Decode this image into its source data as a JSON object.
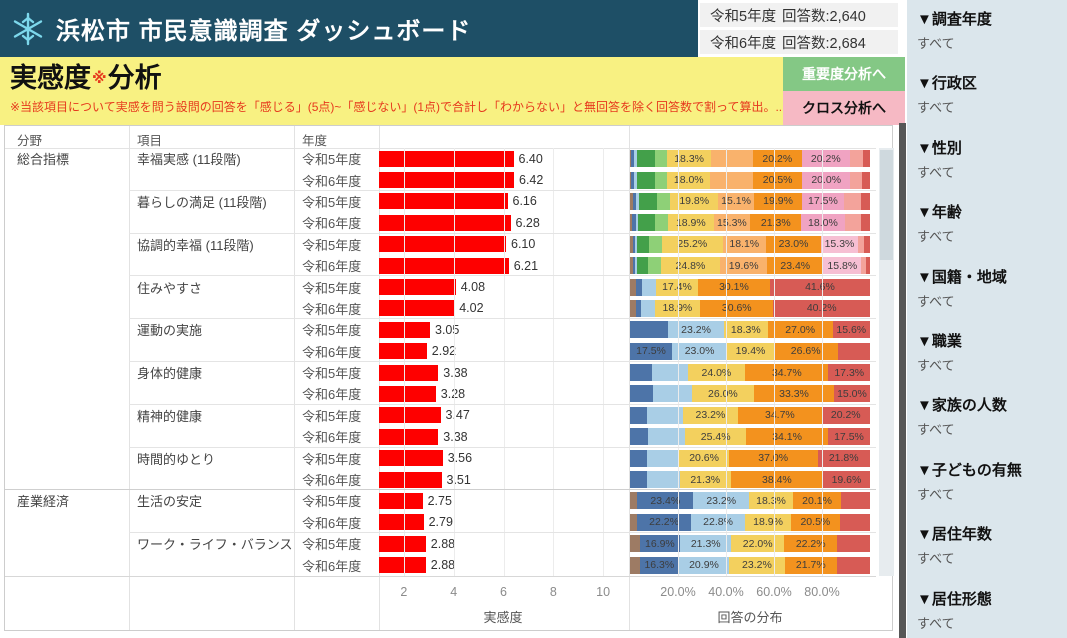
{
  "header": {
    "title": "浜松市 市民意識調査 ダッシュボード",
    "icon": "snowflake-icon"
  },
  "counts": [
    {
      "year": "令和5年度",
      "label": "回答数:2,640"
    },
    {
      "year": "令和6年度",
      "label": "回答数:2,684"
    }
  ],
  "banner": {
    "title_main": "実感度",
    "title_star": "※",
    "title_suffix": "分析",
    "note": "※当該項目について実感を問う設問の回答を「感じる」(5点)~「感じない」(1点)で合計し「わからない」と無回答を除く回答数で割って算出。.."
  },
  "buttons": {
    "importance": "重要度分析へ",
    "cross": "クロス分析へ"
  },
  "table_headers": {
    "category": "分野",
    "item": "項目",
    "year": "年度"
  },
  "axes": {
    "feeling": {
      "label": "実感度",
      "ticks": [
        2,
        4,
        6,
        8,
        10
      ],
      "range": [
        1,
        11
      ]
    },
    "distribution": {
      "label": "回答の分布",
      "ticks": [
        "20.0%",
        "40.0%",
        "60.0%",
        "80.0%"
      ],
      "tick_positions": [
        20,
        40,
        60,
        80
      ]
    }
  },
  "palette": {
    "brown": "#9d7b64",
    "navy": "#4d74a8",
    "ltblue": "#a9cee6",
    "dkgreen": "#43a04a",
    "ltgreen": "#8ed077",
    "yellow": "#f3d05e",
    "peach": "#f9b26c",
    "orange": "#f3921e",
    "pink": "#f0a3c2",
    "ltpink": "#f6bfd3",
    "salmon": "#f3a39b",
    "red": "#d75b55",
    "feeling_bar": "#fe0000"
  },
  "chart_data": {
    "type": "table",
    "description": "実感度 bar (scale 1-11) and 回答の分布 stacked 100% bar per row",
    "rows": [
      {
        "category": "総合指標",
        "item": "幸福実感 (11段階)",
        "year": "令和5年度",
        "value": "6.40",
        "segments": [
          {
            "c": "brown",
            "v": 0.5
          },
          {
            "c": "navy",
            "v": 1.3
          },
          {
            "c": "ltblue",
            "v": 1.2
          },
          {
            "c": "dkgreen",
            "v": 7.5
          },
          {
            "c": "ltgreen",
            "v": 5.0
          },
          {
            "c": "yellow",
            "v": 18.3,
            "l": "18.3%"
          },
          {
            "c": "peach",
            "v": 17.5
          },
          {
            "c": "orange",
            "v": 20.2,
            "l": "20.2%"
          },
          {
            "c": "pink",
            "v": 20.2,
            "l": "20.2%"
          },
          {
            "c": "salmon",
            "v": 5.2
          },
          {
            "c": "red",
            "v": 3.1
          }
        ]
      },
      {
        "category": "",
        "item": "",
        "year": "令和6年度",
        "value": "6.42",
        "segments": [
          {
            "c": "brown",
            "v": 0.5
          },
          {
            "c": "navy",
            "v": 1.3
          },
          {
            "c": "ltblue",
            "v": 1.2
          },
          {
            "c": "dkgreen",
            "v": 7.4
          },
          {
            "c": "ltgreen",
            "v": 5.1
          },
          {
            "c": "yellow",
            "v": 18.0,
            "l": "18.0%"
          },
          {
            "c": "peach",
            "v": 17.8
          },
          {
            "c": "orange",
            "v": 20.5,
            "l": "20.5%"
          },
          {
            "c": "pink",
            "v": 20.0,
            "l": "20.0%"
          },
          {
            "c": "salmon",
            "v": 5.1
          },
          {
            "c": "red",
            "v": 3.1
          }
        ]
      },
      {
        "category": "",
        "item": "暮らしの満足 (11段階)",
        "year": "令和5年度",
        "value": "6.16",
        "segments": [
          {
            "c": "brown",
            "v": 1.2
          },
          {
            "c": "navy",
            "v": 1.5
          },
          {
            "c": "ltblue",
            "v": 1.0
          },
          {
            "c": "dkgreen",
            "v": 7.6
          },
          {
            "c": "ltgreen",
            "v": 5.6
          },
          {
            "c": "yellow",
            "v": 19.8,
            "l": "19.8%"
          },
          {
            "c": "peach",
            "v": 15.1,
            "l": "15.1%"
          },
          {
            "c": "orange",
            "v": 19.9,
            "l": "19.9%"
          },
          {
            "c": "pink",
            "v": 17.5,
            "l": "17.5%"
          },
          {
            "c": "salmon",
            "v": 6.9
          },
          {
            "c": "red",
            "v": 3.9
          }
        ]
      },
      {
        "category": "",
        "item": "",
        "year": "令和6年度",
        "value": "6.28",
        "segments": [
          {
            "c": "brown",
            "v": 1.0
          },
          {
            "c": "navy",
            "v": 1.4
          },
          {
            "c": "ltblue",
            "v": 1.0
          },
          {
            "c": "dkgreen",
            "v": 7.2
          },
          {
            "c": "ltgreen",
            "v": 5.3
          },
          {
            "c": "yellow",
            "v": 18.9,
            "l": "18.9%"
          },
          {
            "c": "peach",
            "v": 15.3,
            "l": "15.3%"
          },
          {
            "c": "orange",
            "v": 21.3,
            "l": "21.3%"
          },
          {
            "c": "pink",
            "v": 18.0,
            "l": "18.0%"
          },
          {
            "c": "salmon",
            "v": 7.0
          },
          {
            "c": "red",
            "v": 3.6
          }
        ]
      },
      {
        "category": "",
        "item": "協調的幸福 (11段階)",
        "year": "令和5年度",
        "value": "6.10",
        "segments": [
          {
            "c": "brown",
            "v": 1.4
          },
          {
            "c": "navy",
            "v": 0.8
          },
          {
            "c": "ltblue",
            "v": 0.8
          },
          {
            "c": "dkgreen",
            "v": 4.8
          },
          {
            "c": "ltgreen",
            "v": 5.6
          },
          {
            "c": "yellow",
            "v": 25.2,
            "l": "25.2%"
          },
          {
            "c": "peach",
            "v": 18.1,
            "l": "18.1%"
          },
          {
            "c": "orange",
            "v": 23.0,
            "l": "23.0%"
          },
          {
            "c": "ltpink",
            "v": 15.3,
            "l": "15.3%"
          },
          {
            "c": "salmon",
            "v": 2.4
          },
          {
            "c": "red",
            "v": 2.6
          }
        ]
      },
      {
        "category": "",
        "item": "",
        "year": "令和6年度",
        "value": "6.21",
        "segments": [
          {
            "c": "brown",
            "v": 1.2
          },
          {
            "c": "navy",
            "v": 0.8
          },
          {
            "c": "ltblue",
            "v": 0.8
          },
          {
            "c": "dkgreen",
            "v": 4.6
          },
          {
            "c": "ltgreen",
            "v": 5.4
          },
          {
            "c": "yellow",
            "v": 24.8,
            "l": "24.8%"
          },
          {
            "c": "peach",
            "v": 19.6,
            "l": "19.6%"
          },
          {
            "c": "orange",
            "v": 23.4,
            "l": "23.4%"
          },
          {
            "c": "ltpink",
            "v": 15.8,
            "l": "15.8%"
          },
          {
            "c": "salmon",
            "v": 1.8
          },
          {
            "c": "red",
            "v": 1.8
          }
        ]
      },
      {
        "category": "",
        "item": "住みやすさ",
        "year": "令和5年度",
        "value": "4.08",
        "segments": [
          {
            "c": "brown",
            "v": 2.6
          },
          {
            "c": "navy",
            "v": 2.3
          },
          {
            "c": "ltblue",
            "v": 6.0
          },
          {
            "c": "yellow",
            "v": 17.4,
            "l": "17.4%"
          },
          {
            "c": "orange",
            "v": 30.1,
            "l": "30.1%"
          },
          {
            "c": "red",
            "v": 41.6,
            "l": "41.6%"
          }
        ]
      },
      {
        "category": "",
        "item": "",
        "year": "令和6年度",
        "value": "4.02",
        "segments": [
          {
            "c": "brown",
            "v": 2.4
          },
          {
            "c": "navy",
            "v": 2.1
          },
          {
            "c": "ltblue",
            "v": 5.8
          },
          {
            "c": "yellow",
            "v": 18.9,
            "l": "18.9%"
          },
          {
            "c": "orange",
            "v": 30.6,
            "l": "30.6%"
          },
          {
            "c": "red",
            "v": 40.2,
            "l": "40.2%"
          }
        ]
      },
      {
        "category": "",
        "item": "運動の実施",
        "year": "令和5年度",
        "value": "3.05",
        "segments": [
          {
            "c": "navy",
            "v": 15.9
          },
          {
            "c": "ltblue",
            "v": 23.2,
            "l": "23.2%"
          },
          {
            "c": "yellow",
            "v": 18.3,
            "l": "18.3%"
          },
          {
            "c": "orange",
            "v": 27.0,
            "l": "27.0%"
          },
          {
            "c": "red",
            "v": 15.6,
            "l": "15.6%"
          }
        ]
      },
      {
        "category": "",
        "item": "",
        "year": "令和6年度",
        "value": "2.92",
        "segments": [
          {
            "c": "navy",
            "v": 17.5,
            "l": "17.5%"
          },
          {
            "c": "ltblue",
            "v": 23.0,
            "l": "23.0%"
          },
          {
            "c": "yellow",
            "v": 19.4,
            "l": "19.4%"
          },
          {
            "c": "orange",
            "v": 26.6,
            "l": "26.6%"
          },
          {
            "c": "red",
            "v": 13.5
          }
        ]
      },
      {
        "category": "",
        "item": "身体的健康",
        "year": "令和5年度",
        "value": "3.38",
        "segments": [
          {
            "c": "navy",
            "v": 9.0
          },
          {
            "c": "ltblue",
            "v": 15.0
          },
          {
            "c": "yellow",
            "v": 24.0,
            "l": "24.0%"
          },
          {
            "c": "orange",
            "v": 34.7,
            "l": "34.7%"
          },
          {
            "c": "red",
            "v": 17.3,
            "l": "17.3%"
          }
        ]
      },
      {
        "category": "",
        "item": "",
        "year": "令和6年度",
        "value": "3.28",
        "segments": [
          {
            "c": "navy",
            "v": 9.5
          },
          {
            "c": "ltblue",
            "v": 16.2
          },
          {
            "c": "yellow",
            "v": 26.0,
            "l": "26.0%"
          },
          {
            "c": "orange",
            "v": 33.3,
            "l": "33.3%"
          },
          {
            "c": "red",
            "v": 15.0,
            "l": "15.0%"
          }
        ]
      },
      {
        "category": "",
        "item": "精神的健康",
        "year": "令和5年度",
        "value": "3.47",
        "segments": [
          {
            "c": "navy",
            "v": 7.2
          },
          {
            "c": "ltblue",
            "v": 14.7
          },
          {
            "c": "yellow",
            "v": 23.2,
            "l": "23.2%"
          },
          {
            "c": "orange",
            "v": 34.7,
            "l": "34.7%"
          },
          {
            "c": "red",
            "v": 20.2,
            "l": "20.2%"
          }
        ]
      },
      {
        "category": "",
        "item": "",
        "year": "令和6年度",
        "value": "3.38",
        "segments": [
          {
            "c": "navy",
            "v": 7.3
          },
          {
            "c": "ltblue",
            "v": 15.7
          },
          {
            "c": "yellow",
            "v": 25.4,
            "l": "25.4%"
          },
          {
            "c": "orange",
            "v": 34.1,
            "l": "34.1%"
          },
          {
            "c": "red",
            "v": 17.5,
            "l": "17.5%"
          }
        ]
      },
      {
        "category": "",
        "item": "時間的ゆとり",
        "year": "令和5年度",
        "value": "3.56",
        "segments": [
          {
            "c": "navy",
            "v": 7.0
          },
          {
            "c": "ltblue",
            "v": 13.6
          },
          {
            "c": "yellow",
            "v": 20.6,
            "l": "20.6%"
          },
          {
            "c": "orange",
            "v": 37.0,
            "l": "37.0%"
          },
          {
            "c": "red",
            "v": 21.8,
            "l": "21.8%"
          }
        ]
      },
      {
        "category": "",
        "item": "",
        "year": "令和6年度",
        "value": "3.51",
        "segments": [
          {
            "c": "navy",
            "v": 6.9
          },
          {
            "c": "ltblue",
            "v": 13.8
          },
          {
            "c": "yellow",
            "v": 21.3,
            "l": "21.3%"
          },
          {
            "c": "orange",
            "v": 38.4,
            "l": "38.4%"
          },
          {
            "c": "red",
            "v": 19.6,
            "l": "19.6%"
          }
        ]
      },
      {
        "category": "産業経済",
        "item": "生活の安定",
        "year": "令和5年度",
        "value": "2.75",
        "segments": [
          {
            "c": "brown",
            "v": 3.0
          },
          {
            "c": "navy",
            "v": 23.4,
            "l": "23.4%"
          },
          {
            "c": "ltblue",
            "v": 23.2,
            "l": "23.2%"
          },
          {
            "c": "yellow",
            "v": 18.3,
            "l": "18.3%"
          },
          {
            "c": "orange",
            "v": 20.1,
            "l": "20.1%"
          },
          {
            "c": "red",
            "v": 12.0
          }
        ]
      },
      {
        "category": "",
        "item": "",
        "year": "令和6年度",
        "value": "2.79",
        "segments": [
          {
            "c": "brown",
            "v": 3.1
          },
          {
            "c": "navy",
            "v": 22.2,
            "l": "22.2%"
          },
          {
            "c": "ltblue",
            "v": 22.8,
            "l": "22.8%"
          },
          {
            "c": "yellow",
            "v": 18.9,
            "l": "18.9%"
          },
          {
            "c": "orange",
            "v": 20.5,
            "l": "20.5%"
          },
          {
            "c": "red",
            "v": 12.5
          }
        ]
      },
      {
        "category": "",
        "item": "ワーク・ライフ・バランス",
        "year": "令和5年度",
        "value": "2.88",
        "segments": [
          {
            "c": "brown",
            "v": 4.0
          },
          {
            "c": "navy",
            "v": 16.9,
            "l": "16.9%"
          },
          {
            "c": "ltblue",
            "v": 21.3,
            "l": "21.3%"
          },
          {
            "c": "yellow",
            "v": 22.0,
            "l": "22.0%"
          },
          {
            "c": "orange",
            "v": 22.2,
            "l": "22.2%"
          },
          {
            "c": "red",
            "v": 13.6
          }
        ]
      },
      {
        "category": "",
        "item": "",
        "year": "令和6年度",
        "value": "2.88",
        "segments": [
          {
            "c": "brown",
            "v": 4.1
          },
          {
            "c": "navy",
            "v": 16.3,
            "l": "16.3%"
          },
          {
            "c": "ltblue",
            "v": 20.9,
            "l": "20.9%"
          },
          {
            "c": "yellow",
            "v": 23.2,
            "l": "23.2%"
          },
          {
            "c": "orange",
            "v": 21.7,
            "l": "21.7%"
          },
          {
            "c": "red",
            "v": 13.8
          }
        ]
      }
    ]
  },
  "sidebar": {
    "filters": [
      {
        "label": "▼調査年度",
        "value": "すべて"
      },
      {
        "label": "▼行政区",
        "value": "すべて"
      },
      {
        "label": "▼性別",
        "value": "すべて"
      },
      {
        "label": "▼年齢",
        "value": "すべて"
      },
      {
        "label": "▼国籍・地域",
        "value": "すべて"
      },
      {
        "label": "▼職業",
        "value": "すべて"
      },
      {
        "label": "▼家族の人数",
        "value": "すべて"
      },
      {
        "label": "▼子どもの有無",
        "value": "すべて"
      },
      {
        "label": "▼居住年数",
        "value": "すべて"
      },
      {
        "label": "▼居住形態",
        "value": "すべて"
      }
    ]
  }
}
